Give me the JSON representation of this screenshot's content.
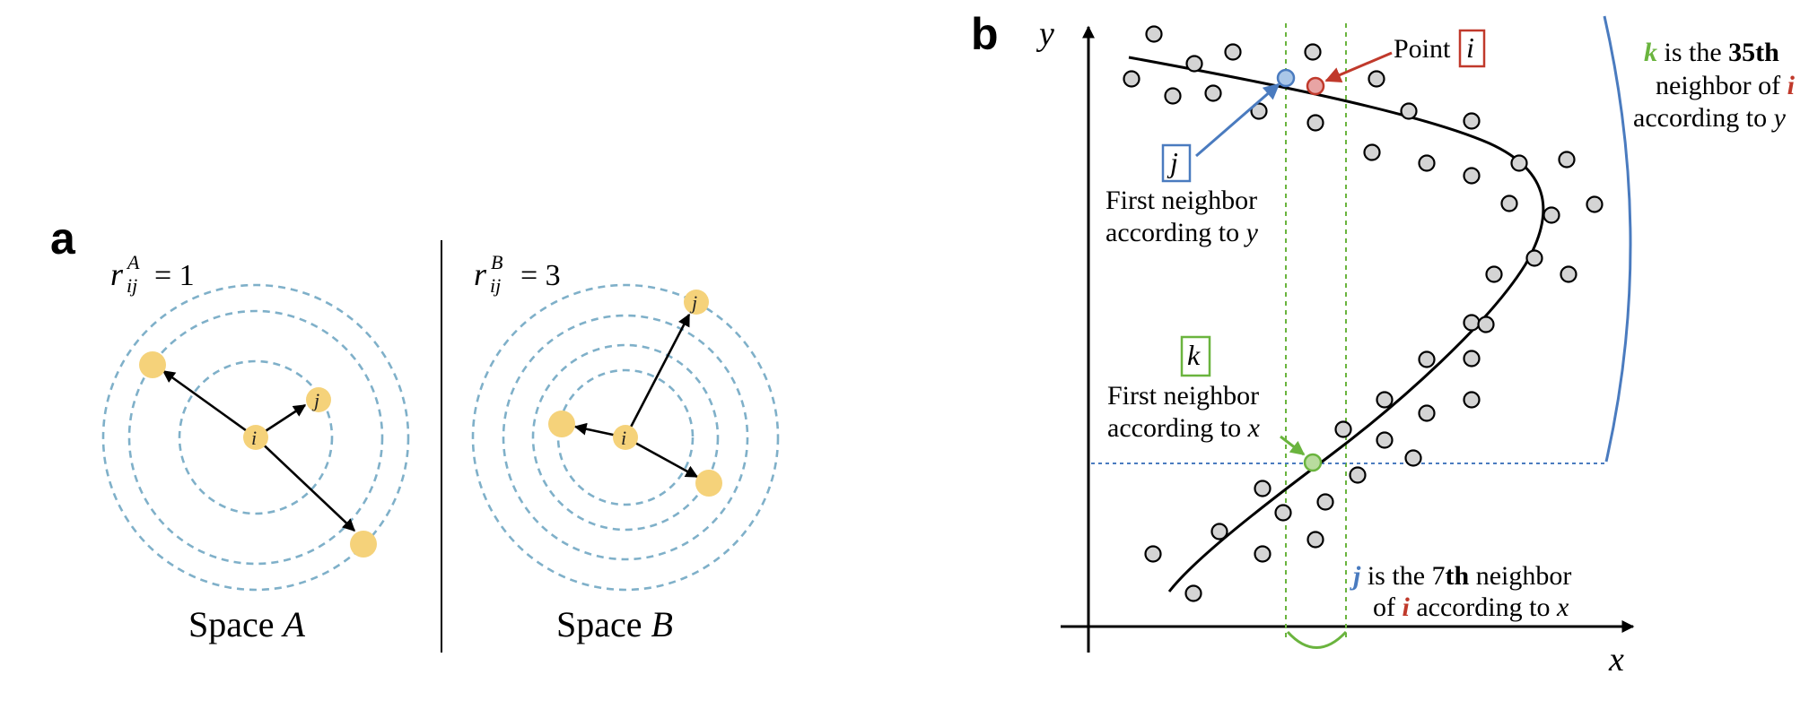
{
  "panel_a": {
    "letter": "a",
    "space_a": {
      "rank_label_base": "r",
      "rank_label_sup": "A",
      "rank_label_sub": "ij",
      "rank_label_value": "= 1",
      "caption_prefix": "Space ",
      "caption_var": "A",
      "node_i": "i",
      "node_j": "j"
    },
    "space_b": {
      "rank_label_base": "r",
      "rank_label_sup": "B",
      "rank_label_sub": "ij",
      "rank_label_value": "= 3",
      "caption_prefix": "Space ",
      "caption_var": "B",
      "node_i": "i",
      "node_j": "j"
    }
  },
  "panel_b": {
    "letter": "b",
    "axis_y": "y",
    "axis_x": "x",
    "point_i_label": "Point",
    "point_i_var": "i",
    "j_box": "j",
    "k_box": "k",
    "first_neighbor_y": [
      "First neighbor",
      "according to ",
      "y"
    ],
    "first_neighbor_x": [
      "First neighbor",
      "according to ",
      "x"
    ],
    "k_note": {
      "var": "k",
      "line1_rest": " is the ",
      "line1_bold": "35th",
      "line2": "neighbor of ",
      "line2_var": "i",
      "line3": "according to ",
      "line3_var": "y"
    },
    "j_note": {
      "var": "j",
      "line1_rest": " is the 7",
      "line1_bold": "th",
      "line1_end": " neighbor",
      "line2": "of ",
      "line2_var": "i",
      "line2_rest": " according to ",
      "line2_var2": "x"
    }
  },
  "colors": {
    "ring": "#7fb0c9",
    "node": "#f5d27a",
    "point_fill": "#d4d4d4",
    "blue": "#4a7bbf",
    "red": "#c0392b",
    "green": "#6ab43e"
  }
}
